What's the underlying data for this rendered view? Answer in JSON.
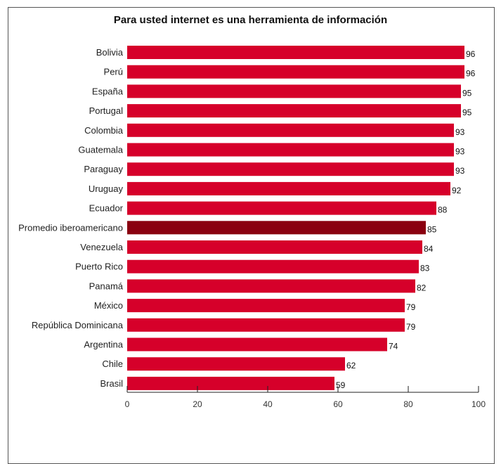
{
  "chart_data": {
    "type": "bar",
    "orientation": "horizontal",
    "title": "Para usted internet es una herramienta de información",
    "categories": [
      "Bolivia",
      "Perú",
      "España",
      "Portugal",
      "Colombia",
      "Guatemala",
      "Paraguay",
      "Uruguay",
      "Ecuador",
      "Promedio iberoamericano",
      "Venezuela",
      "Puerto Rico",
      "Panamá",
      "México",
      "República Dominicana",
      "Argentina",
      "Chile",
      "Brasil"
    ],
    "values": [
      96,
      96,
      95,
      95,
      93,
      93,
      93,
      92,
      88,
      85,
      84,
      83,
      82,
      79,
      79,
      74,
      62,
      59
    ],
    "highlight": "Promedio iberoamericano",
    "xlim": [
      0,
      100
    ],
    "xticks": [
      0,
      20,
      40,
      60,
      80,
      100
    ],
    "colors": {
      "bar": "#d6002a",
      "highlight": "#8a0010"
    },
    "grid": false,
    "legend": "none"
  }
}
